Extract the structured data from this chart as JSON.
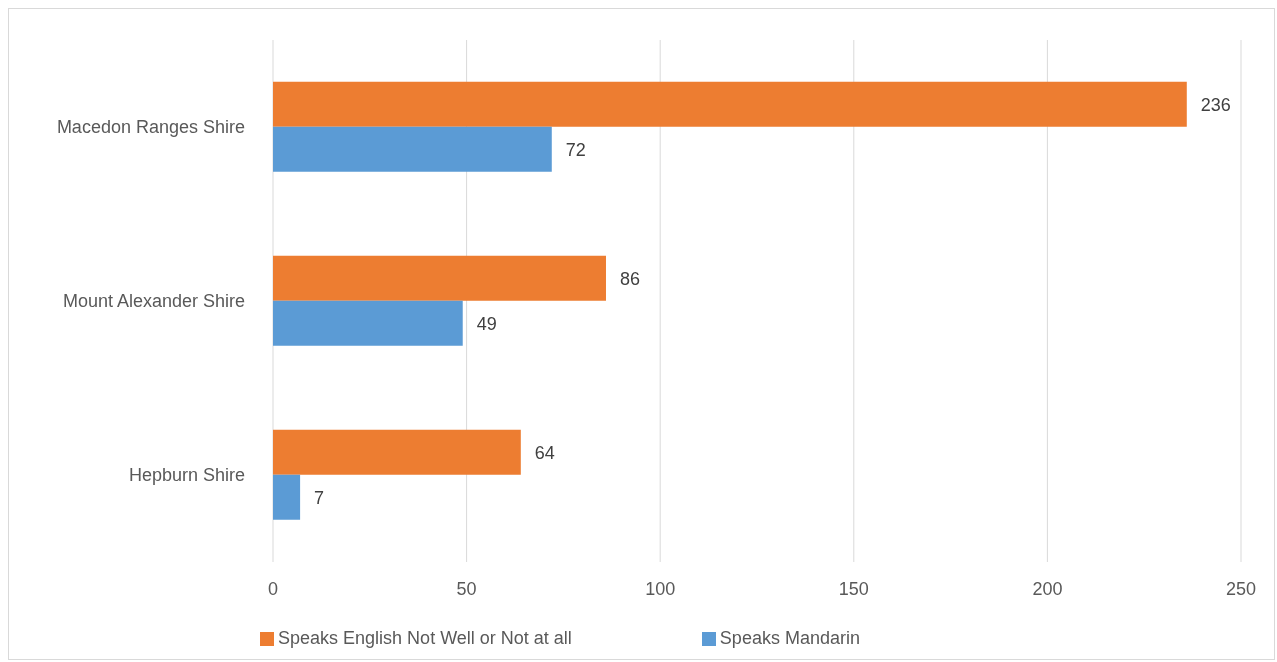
{
  "chart_data": {
    "type": "bar",
    "orientation": "horizontal",
    "categories": [
      "Macedon Ranges Shire",
      "Mount Alexander Shire",
      "Hepburn Shire"
    ],
    "series": [
      {
        "name": "Speaks English Not Well or Not at all",
        "color": "#ed7d31",
        "values": [
          236,
          86,
          64
        ]
      },
      {
        "name": "Speaks Mandarin",
        "color": "#5b9bd5",
        "values": [
          72,
          49,
          7
        ]
      }
    ],
    "xlim": [
      0,
      250
    ],
    "xticks": [
      0,
      50,
      100,
      150,
      200,
      250
    ],
    "grid": "x",
    "legend": "bottom",
    "data_labels": true
  }
}
